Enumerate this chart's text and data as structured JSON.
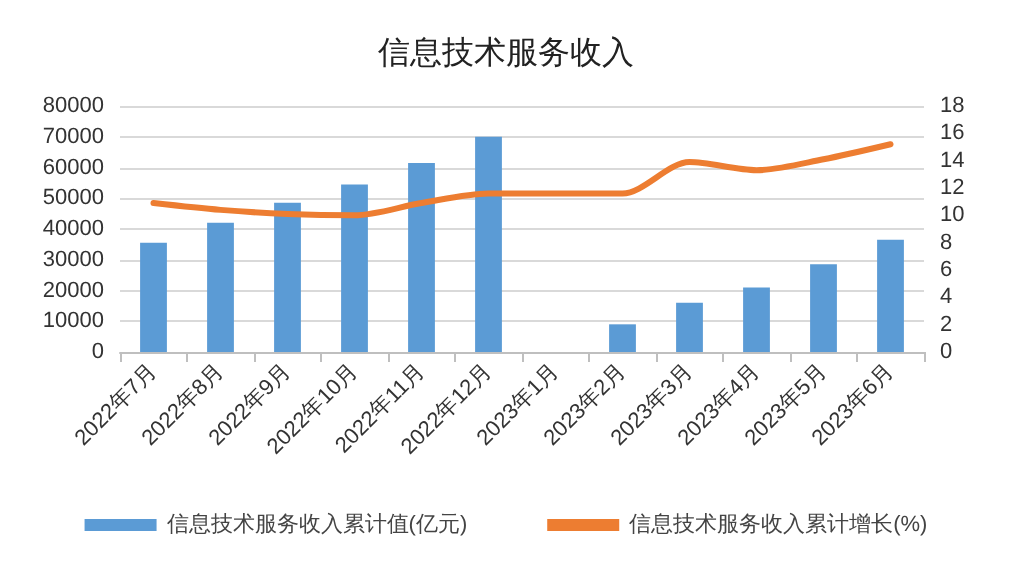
{
  "chart_data": {
    "type": "bar",
    "title": "信息技术服务收入",
    "categories": [
      "2022年7月",
      "2022年8月",
      "2022年9月",
      "2022年10月",
      "2022年11月",
      "2022年12月",
      "2023年1月",
      "2023年2月",
      "2023年3月",
      "2023年4月",
      "2023年5月",
      "2023年6月"
    ],
    "series": [
      {
        "name": "信息技术服务收入累计值(亿元)",
        "color": "#5b9bd5",
        "values": [
          35500,
          42000,
          48500,
          54500,
          61500,
          70000,
          null,
          9000,
          16000,
          21000,
          28500,
          36500
        ]
      },
      {
        "name": "信息技术服务收入累计增长(%)",
        "type": "line",
        "axis": "y2",
        "color": "#ed7d31",
        "values": [
          10.9,
          10.4,
          10.1,
          10.0,
          10.9,
          11.6,
          11.6,
          11.6,
          13.9,
          13.3,
          14.1,
          15.2
        ]
      }
    ],
    "ylim": [
      0,
      80000
    ],
    "yticks": [
      0,
      10000,
      20000,
      30000,
      40000,
      50000,
      60000,
      70000,
      80000
    ],
    "y2lim": [
      0,
      18
    ],
    "y2ticks": [
      0,
      2,
      4,
      6,
      8,
      10,
      12,
      14,
      16,
      18
    ],
    "grid": "y",
    "legend": "bottom",
    "marker": "none"
  }
}
